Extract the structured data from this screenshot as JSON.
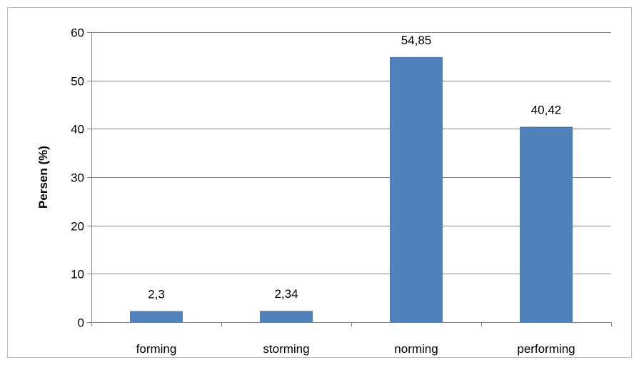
{
  "chart_data": {
    "type": "bar",
    "categories": [
      "forming",
      "storming",
      "norming",
      "performing"
    ],
    "values": [
      2.3,
      2.34,
      54.85,
      40.42
    ],
    "data_labels": [
      "2,3",
      "2,34",
      "54,85",
      "40,42"
    ],
    "ylabel": "Persen (%)",
    "ylim": [
      0,
      60
    ],
    "yticks": [
      "0",
      "10",
      "20",
      "30",
      "40",
      "50",
      "60"
    ],
    "grid": true,
    "legend": "none",
    "bar_color": "#4F81BD"
  }
}
